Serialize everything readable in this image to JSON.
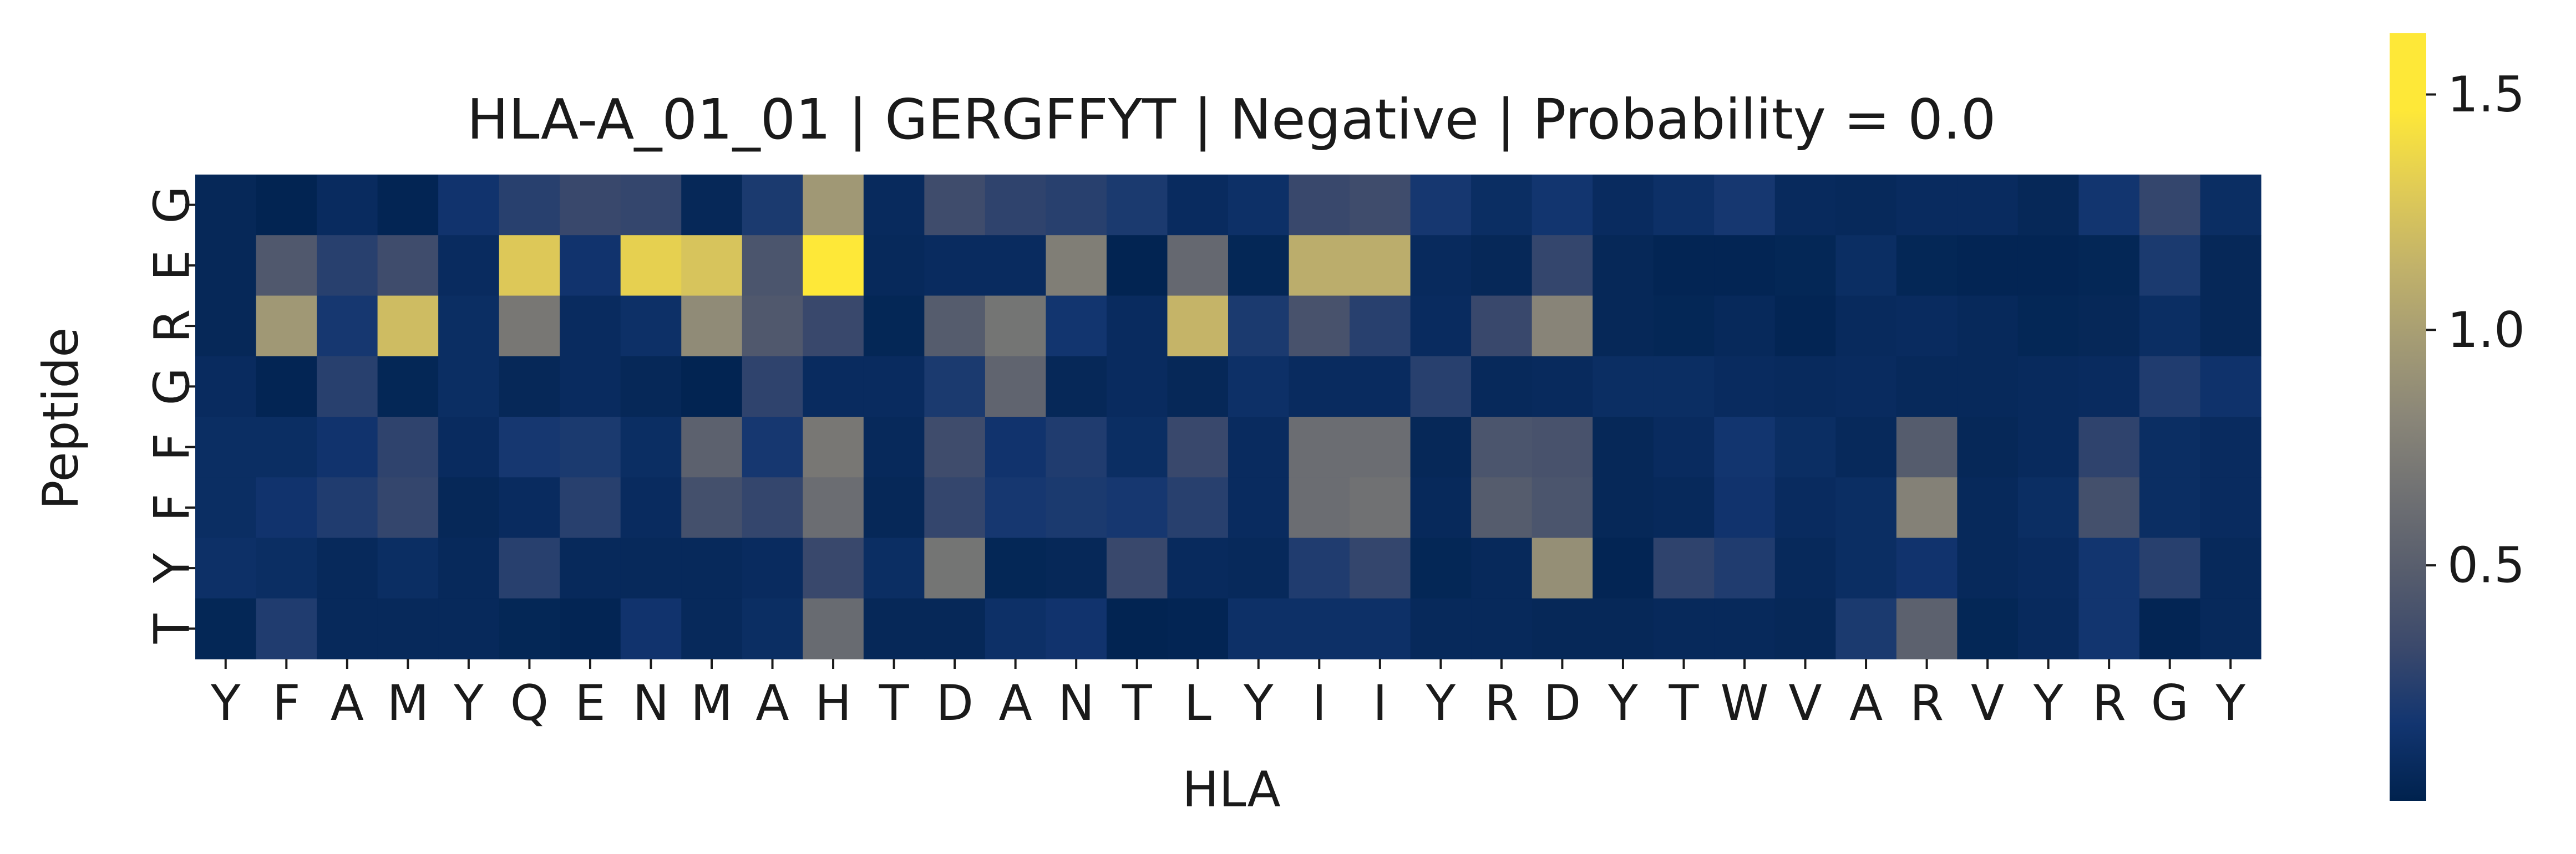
{
  "chart_data": {
    "type": "heatmap",
    "title": "HLA-A_01_01 | GERGFFYT | Negative | Probability = 0.0",
    "xlabel": "HLA",
    "ylabel": "Peptide",
    "x_tick_labels": [
      "Y",
      "F",
      "A",
      "M",
      "Y",
      "Q",
      "E",
      "N",
      "M",
      "A",
      "H",
      "T",
      "D",
      "A",
      "N",
      "T",
      "L",
      "Y",
      "I",
      "I",
      "Y",
      "R",
      "D",
      "Y",
      "T",
      "W",
      "V",
      "A",
      "R",
      "V",
      "Y",
      "R",
      "G",
      "Y"
    ],
    "y_tick_labels": [
      "G",
      "E",
      "R",
      "G",
      "F",
      "F",
      "Y",
      "T"
    ],
    "colormap": "cividis",
    "colorbar": {
      "range": [
        0.0,
        1.63
      ],
      "ticks": [
        0.5,
        1.0,
        1.5
      ],
      "tick_labels": [
        "0.5",
        "1.0",
        "1.5"
      ]
    },
    "values": [
      [
        0.05,
        0.02,
        0.08,
        0.03,
        0.15,
        0.25,
        0.32,
        0.3,
        0.05,
        0.2,
        0.95,
        0.07,
        0.35,
        0.28,
        0.25,
        0.2,
        0.08,
        0.12,
        0.32,
        0.35,
        0.18,
        0.1,
        0.16,
        0.08,
        0.12,
        0.18,
        0.07,
        0.06,
        0.08,
        0.08,
        0.05,
        0.16,
        0.3,
        0.1
      ],
      [
        0.05,
        0.45,
        0.25,
        0.35,
        0.08,
        1.28,
        0.15,
        1.33,
        1.25,
        0.42,
        1.63,
        0.06,
        0.08,
        0.08,
        0.75,
        0.02,
        0.58,
        0.04,
        1.1,
        1.1,
        0.07,
        0.05,
        0.3,
        0.05,
        0.03,
        0.03,
        0.04,
        0.1,
        0.04,
        0.03,
        0.03,
        0.04,
        0.2,
        0.05
      ],
      [
        0.05,
        0.95,
        0.18,
        1.2,
        0.1,
        0.7,
        0.08,
        0.12,
        0.85,
        0.45,
        0.32,
        0.04,
        0.48,
        0.68,
        0.16,
        0.08,
        1.15,
        0.2,
        0.4,
        0.25,
        0.08,
        0.32,
        0.8,
        0.05,
        0.04,
        0.06,
        0.03,
        0.07,
        0.08,
        0.06,
        0.04,
        0.05,
        0.1,
        0.05
      ],
      [
        0.08,
        0.03,
        0.25,
        0.04,
        0.1,
        0.05,
        0.08,
        0.05,
        0.02,
        0.28,
        0.08,
        0.08,
        0.2,
        0.55,
        0.05,
        0.08,
        0.05,
        0.12,
        0.08,
        0.08,
        0.25,
        0.06,
        0.07,
        0.1,
        0.1,
        0.08,
        0.07,
        0.08,
        0.06,
        0.06,
        0.07,
        0.08,
        0.22,
        0.14
      ],
      [
        0.1,
        0.1,
        0.15,
        0.28,
        0.08,
        0.18,
        0.2,
        0.1,
        0.52,
        0.18,
        0.7,
        0.06,
        0.35,
        0.15,
        0.22,
        0.1,
        0.32,
        0.08,
        0.62,
        0.62,
        0.05,
        0.42,
        0.4,
        0.05,
        0.08,
        0.16,
        0.1,
        0.06,
        0.48,
        0.05,
        0.07,
        0.28,
        0.1,
        0.08
      ],
      [
        0.1,
        0.15,
        0.22,
        0.3,
        0.05,
        0.08,
        0.25,
        0.08,
        0.38,
        0.3,
        0.62,
        0.05,
        0.3,
        0.18,
        0.2,
        0.18,
        0.25,
        0.08,
        0.62,
        0.65,
        0.06,
        0.48,
        0.42,
        0.05,
        0.06,
        0.15,
        0.08,
        0.1,
        0.78,
        0.06,
        0.1,
        0.38,
        0.1,
        0.08
      ],
      [
        0.12,
        0.1,
        0.06,
        0.1,
        0.06,
        0.25,
        0.06,
        0.06,
        0.06,
        0.08,
        0.32,
        0.1,
        0.68,
        0.04,
        0.05,
        0.32,
        0.07,
        0.06,
        0.22,
        0.3,
        0.04,
        0.06,
        0.88,
        0.03,
        0.28,
        0.22,
        0.06,
        0.1,
        0.15,
        0.06,
        0.08,
        0.16,
        0.25,
        0.06
      ],
      [
        0.04,
        0.22,
        0.06,
        0.06,
        0.06,
        0.04,
        0.03,
        0.15,
        0.06,
        0.1,
        0.6,
        0.05,
        0.05,
        0.12,
        0.15,
        0.02,
        0.03,
        0.12,
        0.12,
        0.12,
        0.06,
        0.06,
        0.05,
        0.05,
        0.06,
        0.06,
        0.05,
        0.2,
        0.52,
        0.04,
        0.07,
        0.16,
        0.03,
        0.06
      ]
    ]
  }
}
